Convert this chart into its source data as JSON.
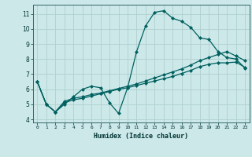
{
  "title": "",
  "xlabel": "Humidex (Indice chaleur)",
  "ylabel": "",
  "bg_color": "#cce8e8",
  "grid_color": "#b0d0d0",
  "line_color": "#006060",
  "xlim": [
    -0.5,
    23.5
  ],
  "ylim": [
    3.8,
    11.6
  ],
  "yticks": [
    4,
    5,
    6,
    7,
    8,
    9,
    10,
    11
  ],
  "xticks": [
    0,
    1,
    2,
    3,
    4,
    5,
    6,
    7,
    8,
    9,
    10,
    11,
    12,
    13,
    14,
    15,
    16,
    17,
    18,
    19,
    20,
    21,
    22,
    23
  ],
  "series": [
    [
      6.5,
      5.0,
      4.5,
      5.0,
      5.5,
      6.0,
      6.2,
      6.1,
      5.1,
      4.4,
      6.1,
      8.5,
      10.2,
      11.1,
      11.2,
      10.7,
      10.5,
      10.1,
      9.4,
      9.3,
      8.5,
      8.1,
      8.0,
      7.4
    ],
    [
      6.5,
      5.0,
      4.5,
      5.1,
      5.3,
      5.4,
      5.55,
      5.7,
      5.85,
      6.0,
      6.1,
      6.25,
      6.4,
      6.55,
      6.7,
      6.85,
      7.05,
      7.25,
      7.5,
      7.65,
      7.75,
      7.75,
      7.8,
      7.45
    ],
    [
      6.5,
      5.0,
      4.5,
      5.2,
      5.4,
      5.5,
      5.65,
      5.75,
      5.9,
      6.05,
      6.2,
      6.35,
      6.55,
      6.75,
      6.95,
      7.15,
      7.35,
      7.6,
      7.9,
      8.1,
      8.3,
      8.5,
      8.2,
      7.9
    ]
  ]
}
